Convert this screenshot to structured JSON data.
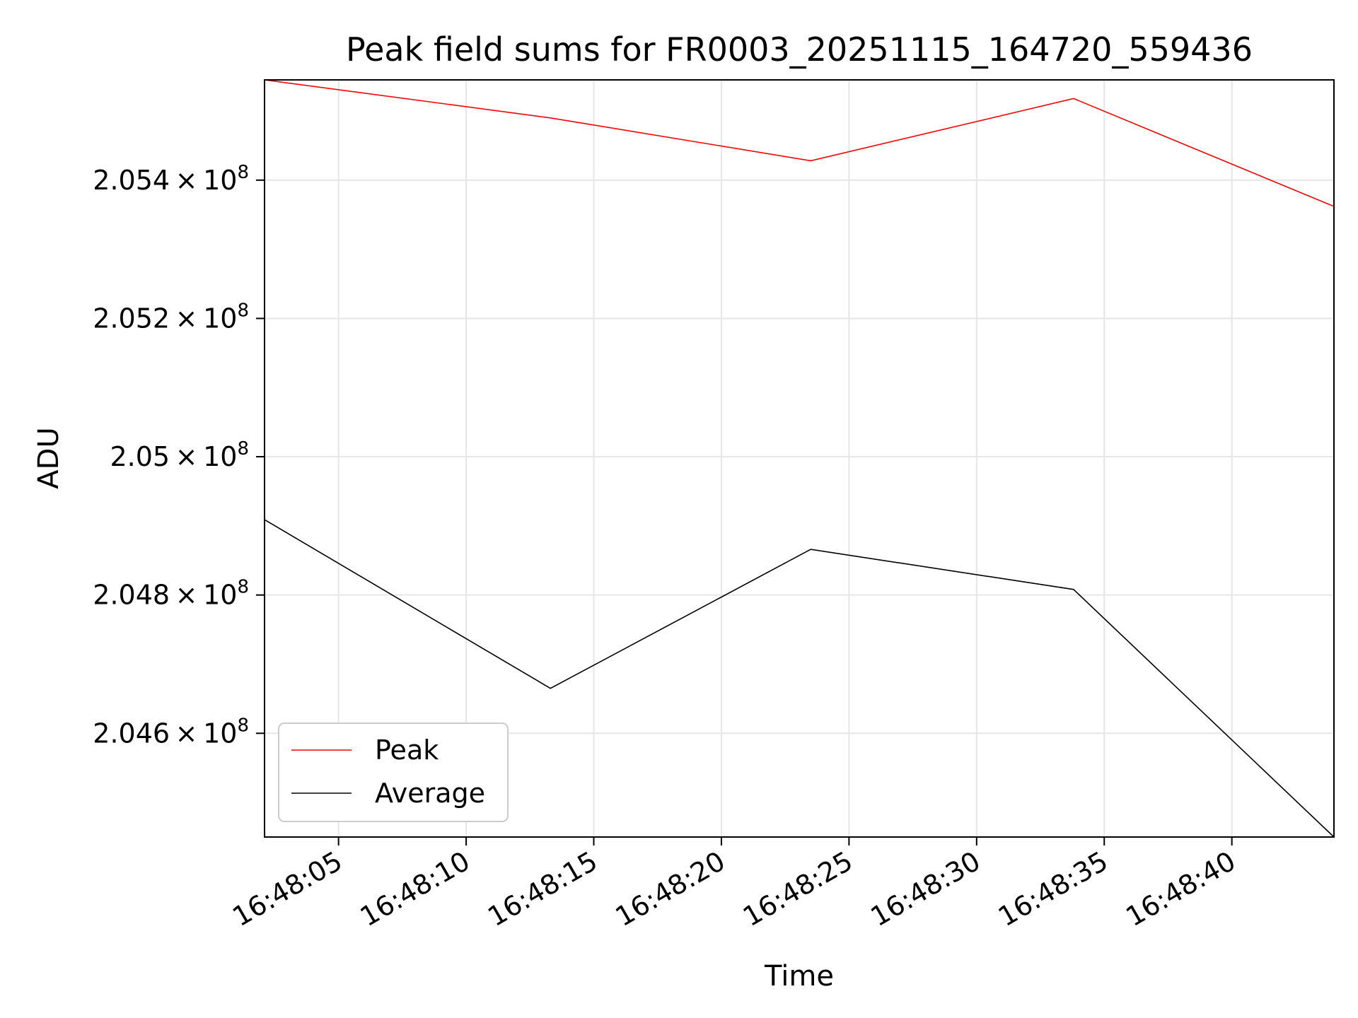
{
  "chart_data": {
    "type": "line",
    "title": "Peak field sums for FR0003_20251115_164720_559436",
    "xlabel": "Time",
    "ylabel": "ADU",
    "grid": true,
    "legend_position": "lower-left",
    "xlim": [
      2.1,
      44.0
    ],
    "ylim": [
      204.45,
      205.545
    ],
    "x_unit": "seconds after 16:48:00",
    "y_scale_note": "values in 1e6 ADU",
    "x_ticks": [
      {
        "value": 5,
        "label": "16:48:05"
      },
      {
        "value": 10,
        "label": "16:48:10"
      },
      {
        "value": 15,
        "label": "16:48:15"
      },
      {
        "value": 20,
        "label": "16:48:20"
      },
      {
        "value": 25,
        "label": "16:48:25"
      },
      {
        "value": 30,
        "label": "16:48:30"
      },
      {
        "value": 35,
        "label": "16:48:35"
      },
      {
        "value": 40,
        "label": "16:48:40"
      }
    ],
    "y_ticks": [
      {
        "value": 204.6,
        "mantissa": "2.046",
        "base": "10",
        "exponent": "8"
      },
      {
        "value": 204.8,
        "mantissa": "2.048",
        "base": "10",
        "exponent": "8"
      },
      {
        "value": 205.0,
        "mantissa": "2.05",
        "base": "10",
        "exponent": "8"
      },
      {
        "value": 205.2,
        "mantissa": "2.052",
        "base": "10",
        "exponent": "8"
      },
      {
        "value": 205.4,
        "mantissa": "2.054",
        "base": "10",
        "exponent": "8"
      }
    ],
    "series": [
      {
        "name": "Peak",
        "color": "#ff0000",
        "x": [
          2.1,
          13.3,
          23.5,
          33.8,
          44.0
        ],
        "y": [
          205.545,
          205.49,
          205.428,
          205.518,
          205.362
        ]
      },
      {
        "name": "Average",
        "color": "#000000",
        "x": [
          2.1,
          13.3,
          23.5,
          33.8,
          44.0
        ],
        "y": [
          204.909,
          204.665,
          204.866,
          204.808,
          204.45
        ]
      }
    ]
  }
}
